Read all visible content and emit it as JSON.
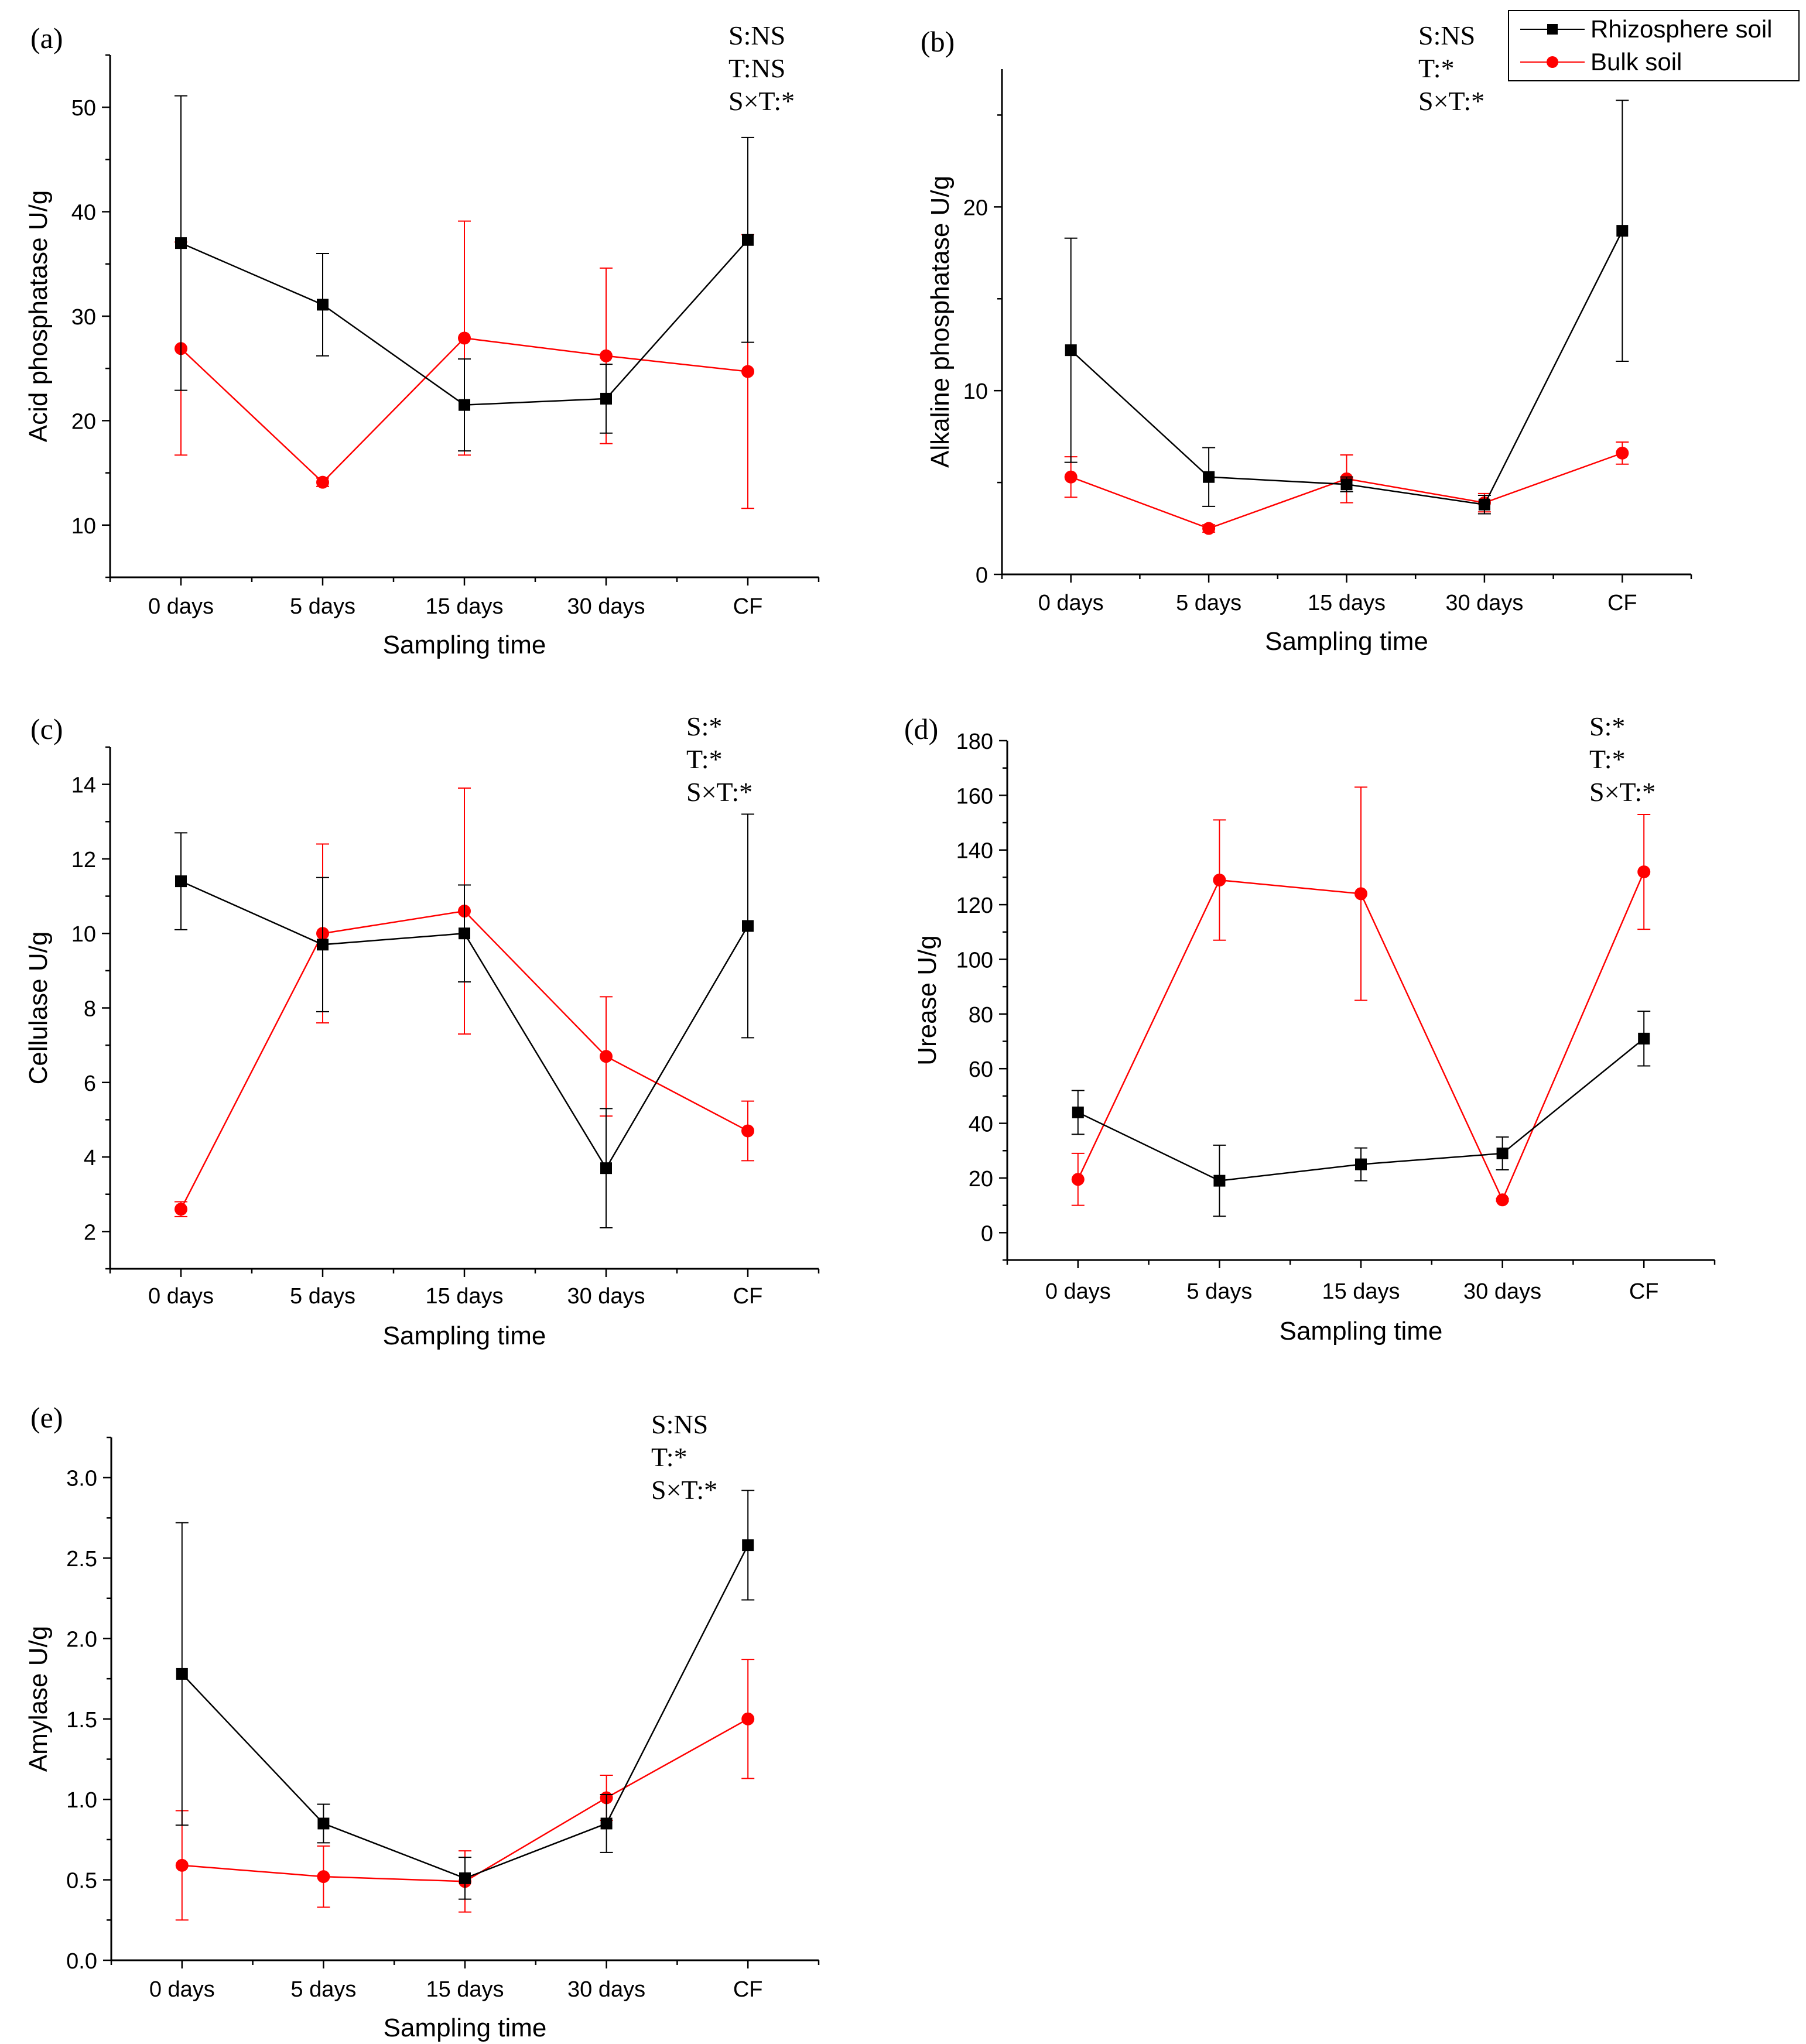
{
  "figure": {
    "legend": {
      "items": [
        {
          "label": "Rhizosphere soil",
          "color": "#000000",
          "marker": "square"
        },
        {
          "label": "Bulk soil",
          "color": "#ff0000",
          "marker": "circle"
        }
      ]
    }
  },
  "chart_data": [
    {
      "id": "a",
      "panel_label": "(a)",
      "type": "line",
      "ylabel": "Acid phosphatase U/g",
      "xlabel": "Sampling time",
      "categories": [
        "0 days",
        "5 days",
        "15 days",
        "30 days",
        "CF"
      ],
      "ylim": [
        5,
        55
      ],
      "yticks": [
        10,
        20,
        30,
        40,
        50
      ],
      "stats": [
        "S:NS",
        "T:NS",
        "S×T:*"
      ],
      "series": [
        {
          "name": "Rhizosphere soil",
          "color": "#000000",
          "marker": "square",
          "values": [
            37.0,
            31.1,
            21.5,
            22.1,
            37.3
          ],
          "errors": [
            14.1,
            4.9,
            4.4,
            3.3,
            9.8
          ]
        },
        {
          "name": "Bulk soil",
          "color": "#ff0000",
          "marker": "circle",
          "values": [
            26.9,
            14.1,
            27.9,
            26.2,
            24.7
          ],
          "errors": [
            10.2,
            0.4,
            11.2,
            8.4,
            13.1
          ]
        }
      ]
    },
    {
      "id": "b",
      "panel_label": "(b)",
      "type": "line",
      "ylabel": "Alkaline phosphatase U/g",
      "xlabel": "Sampling time",
      "categories": [
        "0 days",
        "5 days",
        "15 days",
        "30 days",
        "CF"
      ],
      "ylim": [
        0,
        27.5
      ],
      "yticks": [
        0,
        10,
        20
      ],
      "stats": [
        "S:NS",
        "T:*",
        "S×T:*"
      ],
      "series": [
        {
          "name": "Rhizosphere soil",
          "color": "#000000",
          "marker": "square",
          "values": [
            12.2,
            5.3,
            4.9,
            3.8,
            18.7
          ],
          "errors": [
            6.1,
            1.6,
            0.4,
            0.5,
            7.1
          ]
        },
        {
          "name": "Bulk soil",
          "color": "#ff0000",
          "marker": "circle",
          "values": [
            5.3,
            2.5,
            5.2,
            3.9,
            6.6
          ],
          "errors": [
            1.1,
            0.2,
            1.3,
            0.5,
            0.6
          ]
        }
      ]
    },
    {
      "id": "c",
      "panel_label": "(c)",
      "type": "line",
      "ylabel": "Cellulase U/g",
      "xlabel": "Sampling time",
      "categories": [
        "0 days",
        "5 days",
        "15 days",
        "30 days",
        "CF"
      ],
      "ylim": [
        1,
        15
      ],
      "yticks": [
        2,
        4,
        6,
        8,
        10,
        12,
        14
      ],
      "stats": [
        "S:*",
        "T:*",
        "S×T:*"
      ],
      "series": [
        {
          "name": "Rhizosphere soil",
          "color": "#000000",
          "marker": "square",
          "values": [
            11.4,
            9.7,
            10.0,
            3.7,
            10.2
          ],
          "errors": [
            1.3,
            1.8,
            1.3,
            1.6,
            3.0
          ]
        },
        {
          "name": "Bulk soil",
          "color": "#ff0000",
          "marker": "circle",
          "values": [
            2.6,
            10.0,
            10.6,
            6.7,
            4.7
          ],
          "errors": [
            0.2,
            2.4,
            3.3,
            1.6,
            0.8
          ]
        }
      ]
    },
    {
      "id": "d",
      "panel_label": "(d)",
      "type": "line",
      "ylabel": "Urease U/g",
      "xlabel": "Sampling time",
      "categories": [
        "0 days",
        "5 days",
        "15 days",
        "30 days",
        "CF"
      ],
      "ylim": [
        -10,
        180
      ],
      "yticks": [
        0,
        20,
        40,
        60,
        80,
        100,
        120,
        140,
        160,
        180
      ],
      "stats": [
        "S:*",
        "T:*",
        "S×T:*"
      ],
      "series": [
        {
          "name": "Rhizosphere soil",
          "color": "#000000",
          "marker": "square",
          "values": [
            44,
            19,
            25,
            29,
            71
          ],
          "errors": [
            8,
            13,
            6,
            6,
            10
          ]
        },
        {
          "name": "Bulk soil",
          "color": "#ff0000",
          "marker": "circle",
          "values": [
            19.5,
            129,
            124,
            12,
            132
          ],
          "errors": [
            9.5,
            22,
            39,
            0.5,
            21
          ]
        }
      ]
    },
    {
      "id": "e",
      "panel_label": "(e)",
      "type": "line",
      "ylabel": "Amylase U/g",
      "xlabel": "Sampling time",
      "categories": [
        "0 days",
        "5 days",
        "15 days",
        "30 days",
        "CF"
      ],
      "ylim": [
        0,
        3.25
      ],
      "yticks": [
        0.0,
        0.5,
        1.0,
        1.5,
        2.0,
        2.5,
        3.0
      ],
      "stats": [
        "S:NS",
        "T:*",
        "S×T:*"
      ],
      "series": [
        {
          "name": "Rhizosphere soil",
          "color": "#000000",
          "marker": "square",
          "values": [
            1.78,
            0.85,
            0.51,
            0.85,
            2.58
          ],
          "errors": [
            0.94,
            0.12,
            0.13,
            0.18,
            0.34
          ]
        },
        {
          "name": "Bulk soil",
          "color": "#ff0000",
          "marker": "circle",
          "values": [
            0.59,
            0.52,
            0.49,
            1.01,
            1.5
          ],
          "errors": [
            0.34,
            0.19,
            0.19,
            0.14,
            0.37
          ]
        }
      ]
    }
  ]
}
